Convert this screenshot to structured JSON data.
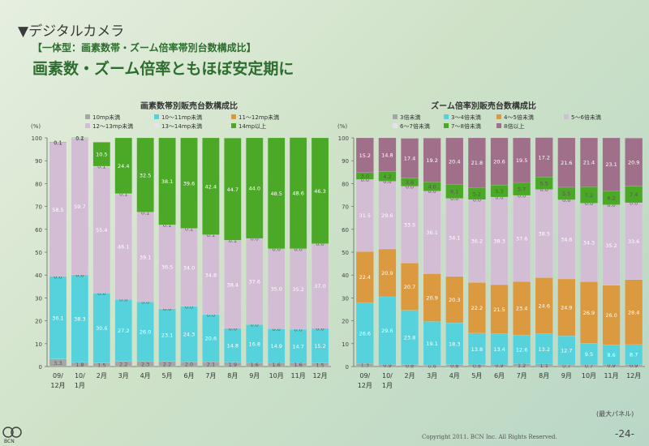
{
  "header": {
    "section": "▼デジタルカメラ",
    "subtitle": "【一体型：画素数帯・ズーム倍率帯別台数構成比】",
    "headline": "画素数・ズーム倍率ともほぼ安定期に"
  },
  "footer": {
    "copyright": "Copyright 2011. BCN Inc. All Rights Reserved.",
    "page": "-24-",
    "note": "(最大パネル)",
    "logo": "BCN"
  },
  "chart_data": [
    {
      "type": "bar",
      "stacked": true,
      "title": "画素数帯別販売台数構成比",
      "ylabel": "(%)",
      "ylim": [
        0,
        100
      ],
      "yticks": [
        0,
        10,
        20,
        30,
        40,
        50,
        60,
        70,
        80,
        90,
        100
      ],
      "categories": [
        "09/\n12月",
        "10/\n1月",
        "2月",
        "3月",
        "4月",
        "5月",
        "6月",
        "7月",
        "8月",
        "9月",
        "10月",
        "11月",
        "12月"
      ],
      "series": [
        {
          "name": "10mp未満",
          "color": "#a6a6a6",
          "values": [
            3.3,
            1.8,
            1.5,
            2.2,
            2.3,
            2.2,
            2.0,
            2.1,
            1.9,
            1.6,
            1.6,
            1.6,
            1.5
          ]
        },
        {
          "name": "10～11mp未満",
          "color": "#55d2dc",
          "values": [
            36.1,
            38.3,
            30.6,
            27.2,
            26.0,
            23.1,
            24.3,
            20.6,
            14.8,
            16.8,
            14.9,
            14.7,
            15.2
          ]
        },
        {
          "name": "11～12mp未満",
          "color": "#dc9a40",
          "values": [
            0.0,
            0.0,
            0.0,
            0.0,
            0.0,
            0.0,
            0.0,
            0.0,
            0.0,
            0.0,
            0.0,
            0.0,
            0.0
          ]
        },
        {
          "name": "12～13mp未満",
          "color": "#d2bdd4",
          "values": [
            58.5,
            59.7,
            55.4,
            46.1,
            39.1,
            36.5,
            34.0,
            34.8,
            38.4,
            37.6,
            35.0,
            35.2,
            37.0
          ]
        },
        {
          "name": "13～14mp未満",
          "color": "#e8e3ea",
          "values": [
            0.1,
            0.1,
            0.1,
            0.1,
            0.1,
            0.1,
            0.1,
            0.1,
            0.1,
            0.0,
            0.0,
            0.0,
            0.0
          ]
        },
        {
          "name": "14mp以上",
          "color": "#4ca928",
          "values": [
            0.1,
            0.2,
            10.5,
            24.4,
            32.5,
            38.1,
            39.6,
            42.4,
            44.7,
            44.0,
            48.5,
            48.6,
            46.3
          ]
        }
      ],
      "legend": [
        [
          "10mp未満",
          "10～11mp未満",
          "11～12mp未満"
        ],
        [
          "12～13mp未満",
          "13～14mp未満",
          "14mp以上"
        ]
      ]
    },
    {
      "type": "bar",
      "stacked": true,
      "title": "ズーム倍率別販売台数構成比",
      "ylabel": "(%)",
      "ylim": [
        0,
        100
      ],
      "yticks": [
        0,
        10,
        20,
        30,
        40,
        50,
        60,
        70,
        80,
        90,
        100
      ],
      "categories": [
        "09/\n12月",
        "10/\n1月",
        "2月",
        "3月",
        "4月",
        "5月",
        "6月",
        "7月",
        "8月",
        "9月",
        "10月",
        "11月",
        "12月"
      ],
      "series": [
        {
          "name": "3倍未満",
          "color": "#a6a6a6",
          "values": [
            1.3,
            0.9,
            0.8,
            0.6,
            0.8,
            0.8,
            0.9,
            1.2,
            1.1,
            0.7,
            0.7,
            0.9,
            0.9
          ]
        },
        {
          "name": "3～4倍未満",
          "color": "#55d2dc",
          "values": [
            26.6,
            29.6,
            23.8,
            19.1,
            18.3,
            13.8,
            13.4,
            12.6,
            13.2,
            12.7,
            9.5,
            8.6,
            8.7
          ]
        },
        {
          "name": "4～5倍未満",
          "color": "#dc9a40",
          "values": [
            22.4,
            20.9,
            20.7,
            20.9,
            20.3,
            22.2,
            21.5,
            23.4,
            24.6,
            24.9,
            26.9,
            26.0,
            28.4
          ]
        },
        {
          "name": "5～6倍未満",
          "color": "#d2bdd4",
          "values": [
            31.5,
            29.6,
            33.5,
            36.1,
            34.1,
            36.2,
            38.3,
            37.6,
            38.5,
            34.6,
            34.3,
            35.2,
            33.6
          ]
        },
        {
          "name": "6～7倍未満",
          "color": "#e8e3ea",
          "values": [
            0.0,
            0.0,
            0.0,
            0.0,
            0.0,
            0.0,
            0.0,
            0.0,
            0.0,
            0.0,
            0.0,
            0.0,
            0.0
          ]
        },
        {
          "name": "7～8倍未満",
          "color": "#4ca928",
          "values": [
            3.0,
            4.2,
            3.6,
            4.0,
            6.1,
            5.2,
            5.3,
            5.7,
            5.5,
            5.5,
            7.2,
            6.2,
            7.4
          ]
        },
        {
          "name": "8倍以上",
          "color": "#a0708a",
          "values": [
            15.2,
            14.8,
            17.4,
            19.2,
            20.4,
            21.8,
            20.6,
            19.5,
            17.2,
            21.6,
            21.4,
            23.1,
            20.9
          ]
        }
      ],
      "legend": [
        [
          "3倍未満",
          "3～4倍未満",
          "4～5倍未満",
          "5～6倍未満"
        ],
        [
          "6～7倍未満",
          "7～8倍未満",
          "8倍以上"
        ]
      ]
    }
  ]
}
